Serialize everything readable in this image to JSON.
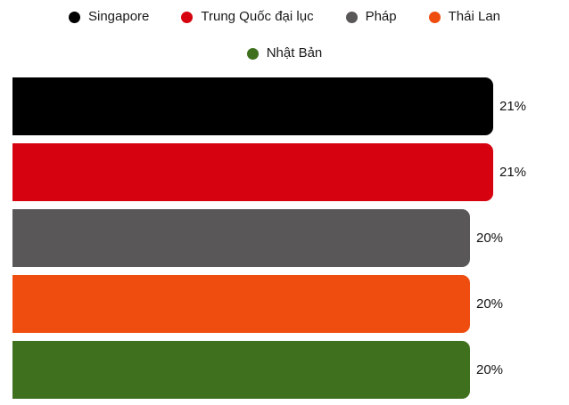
{
  "chart_data": {
    "type": "bar",
    "orientation": "horizontal",
    "categories": [
      "Singapore",
      "Trung Quốc đại lục",
      "Pháp",
      "Thái Lan",
      "Nhật Bản"
    ],
    "values": [
      21,
      21,
      20,
      20,
      20
    ],
    "value_labels": [
      "21%",
      "21%",
      "20%",
      "20%",
      "20%"
    ],
    "colors": [
      "#000000",
      "#d6020f",
      "#595757",
      "#ee4d0f",
      "#3f701d"
    ],
    "unit": "%",
    "legend_position": "top",
    "grid": false,
    "axes_visible": false
  }
}
